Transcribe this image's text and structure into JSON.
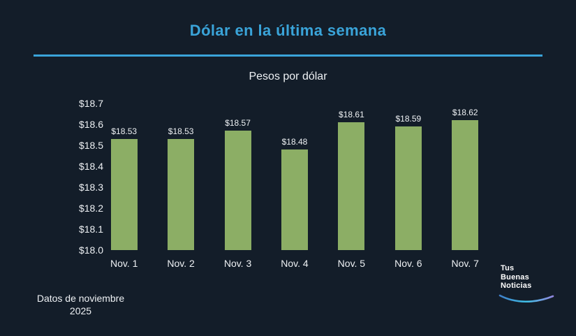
{
  "title": "Dólar en la última semana",
  "subtitle": "Pesos por dólar",
  "footnote": {
    "line1": "Datos de noviembre",
    "line2": "2025"
  },
  "logo": {
    "line1": "Tus",
    "line2": "Buenas",
    "line3": "Noticias"
  },
  "colors": {
    "background": "#131d29",
    "accent": "#3aa4d9",
    "bar": "#8cae65",
    "text": "#eef1f4",
    "arc_start": "#3f7ec9",
    "arc_mid": "#3fc0e6",
    "arc_end": "#9186dd"
  },
  "chart_data": {
    "type": "bar",
    "title": "Dólar en la última semana",
    "subtitle": "Pesos por dólar",
    "categories": [
      "Nov. 1",
      "Nov. 2",
      "Nov. 3",
      "Nov. 4",
      "Nov. 5",
      "Nov. 6",
      "Nov. 7"
    ],
    "values": [
      18.53,
      18.53,
      18.57,
      18.48,
      18.61,
      18.59,
      18.62
    ],
    "bar_labels": [
      "$18.53",
      "$18.53",
      "$18.57",
      "$18.48",
      "$18.61",
      "$18.59",
      "$18.62"
    ],
    "xlabel": "",
    "ylabel": "Pesos por dólar",
    "ylim": [
      18.0,
      18.7
    ],
    "yticks": [
      "$18.7",
      "$18.6",
      "$18.5",
      "$18.4",
      "$18.3",
      "$18.2",
      "$18.1",
      "$18.0"
    ],
    "grid": false,
    "legend": false,
    "bar_color": "#8cae65"
  }
}
